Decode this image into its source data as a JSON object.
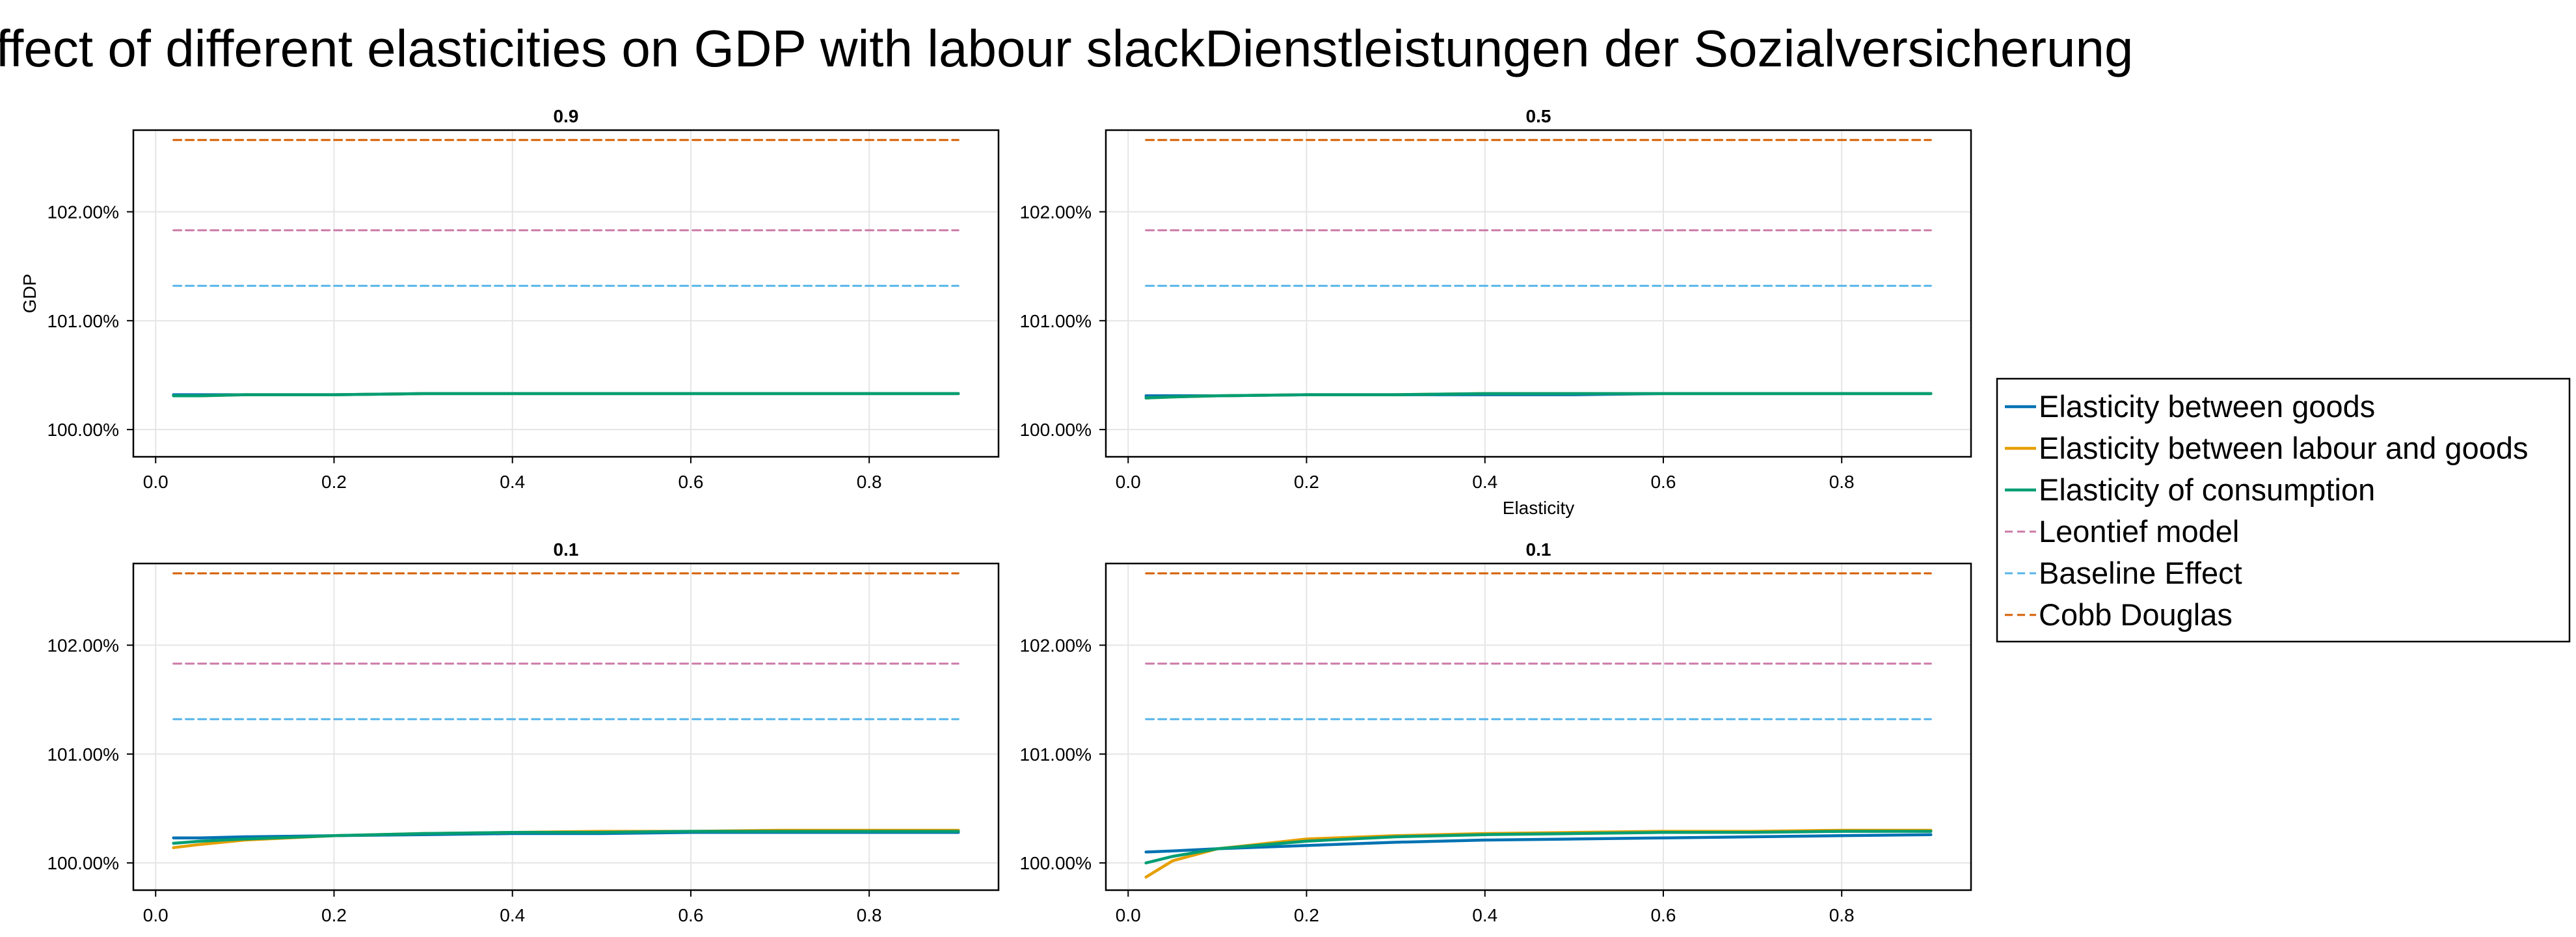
{
  "figure": {
    "title": "Effect of different elasticities on GDP with labour slackDienstleistungen der Sozialversicherung"
  },
  "legend": {
    "placement": "right",
    "entries": [
      {
        "label": "Elasticity between goods",
        "color": "#0072B2",
        "dash": "solid"
      },
      {
        "label": "Elasticity between labour and goods",
        "color": "#E69F00",
        "dash": "solid"
      },
      {
        "label": "Elasticity of consumption",
        "color": "#009E73",
        "dash": "solid"
      },
      {
        "label": "Leontief model",
        "color": "#CC79A7",
        "dash": "dashed"
      },
      {
        "label": "Baseline Effect",
        "color": "#56B4E9",
        "dash": "dashed"
      },
      {
        "label": "Cobb Douglas",
        "color": "#D55E00",
        "dash": "dashed"
      }
    ]
  },
  "chart_data": [
    {
      "type": "line",
      "title": "0.9",
      "xlabel": "",
      "ylabel": "GDP",
      "xlim": [
        -0.025,
        0.945
      ],
      "ylim": [
        99.75,
        102.75
      ],
      "xticks": [
        0.0,
        0.2,
        0.4,
        0.6,
        0.8
      ],
      "xtick_labels": [
        "0.0",
        "0.2",
        "0.4",
        "0.6",
        "0.8"
      ],
      "yticks": [
        100,
        101,
        102
      ],
      "ytick_labels": [
        "100.00%",
        "101.00%",
        "102.00%"
      ],
      "grid": true,
      "x": [
        0.02,
        0.05,
        0.1,
        0.2,
        0.3,
        0.4,
        0.5,
        0.6,
        0.7,
        0.8,
        0.9
      ],
      "series": [
        {
          "name": "Elasticity between goods",
          "values": [
            100.32,
            100.32,
            100.32,
            100.32,
            100.33,
            100.33,
            100.33,
            100.33,
            100.33,
            100.33,
            100.33
          ]
        },
        {
          "name": "Elasticity between labour and goods",
          "values": [
            100.31,
            100.31,
            100.32,
            100.32,
            100.33,
            100.33,
            100.33,
            100.33,
            100.33,
            100.33,
            100.33
          ]
        },
        {
          "name": "Elasticity of consumption",
          "values": [
            100.31,
            100.31,
            100.32,
            100.32,
            100.33,
            100.33,
            100.33,
            100.33,
            100.33,
            100.33,
            100.33
          ]
        },
        {
          "name": "Leontief model",
          "values": [
            101.83,
            101.83,
            101.83,
            101.83,
            101.83,
            101.83,
            101.83,
            101.83,
            101.83,
            101.83,
            101.83
          ]
        },
        {
          "name": "Baseline Effect",
          "values": [
            101.32,
            101.32,
            101.32,
            101.32,
            101.32,
            101.32,
            101.32,
            101.32,
            101.32,
            101.32,
            101.32
          ]
        },
        {
          "name": "Cobb Douglas",
          "values": [
            102.66,
            102.66,
            102.66,
            102.66,
            102.66,
            102.66,
            102.66,
            102.66,
            102.66,
            102.66,
            102.66
          ]
        }
      ]
    },
    {
      "type": "line",
      "title": "0.5",
      "xlabel": "Elasticity",
      "ylabel": "",
      "xlim": [
        -0.025,
        0.945
      ],
      "ylim": [
        99.75,
        102.75
      ],
      "xticks": [
        0.0,
        0.2,
        0.4,
        0.6,
        0.8
      ],
      "xtick_labels": [
        "0.0",
        "0.2",
        "0.4",
        "0.6",
        "0.8"
      ],
      "yticks": [
        100,
        101,
        102
      ],
      "ytick_labels": [
        "100.00%",
        "101.00%",
        "102.00%"
      ],
      "grid": true,
      "x": [
        0.02,
        0.05,
        0.1,
        0.2,
        0.3,
        0.4,
        0.5,
        0.6,
        0.7,
        0.8,
        0.9
      ],
      "series": [
        {
          "name": "Elasticity between goods",
          "values": [
            100.31,
            100.31,
            100.31,
            100.32,
            100.32,
            100.32,
            100.32,
            100.33,
            100.33,
            100.33,
            100.33
          ]
        },
        {
          "name": "Elasticity between labour and goods",
          "values": [
            100.29,
            100.3,
            100.31,
            100.32,
            100.32,
            100.33,
            100.33,
            100.33,
            100.33,
            100.33,
            100.33
          ]
        },
        {
          "name": "Elasticity of consumption",
          "values": [
            100.29,
            100.3,
            100.31,
            100.32,
            100.32,
            100.33,
            100.33,
            100.33,
            100.33,
            100.33,
            100.33
          ]
        },
        {
          "name": "Leontief model",
          "values": [
            101.83,
            101.83,
            101.83,
            101.83,
            101.83,
            101.83,
            101.83,
            101.83,
            101.83,
            101.83,
            101.83
          ]
        },
        {
          "name": "Baseline Effect",
          "values": [
            101.32,
            101.32,
            101.32,
            101.32,
            101.32,
            101.32,
            101.32,
            101.32,
            101.32,
            101.32,
            101.32
          ]
        },
        {
          "name": "Cobb Douglas",
          "values": [
            102.66,
            102.66,
            102.66,
            102.66,
            102.66,
            102.66,
            102.66,
            102.66,
            102.66,
            102.66,
            102.66
          ]
        }
      ]
    },
    {
      "type": "line",
      "title": "0.1",
      "xlabel": "",
      "ylabel": "",
      "xlim": [
        -0.025,
        0.945
      ],
      "ylim": [
        99.75,
        102.75
      ],
      "xticks": [
        0.0,
        0.2,
        0.4,
        0.6,
        0.8
      ],
      "xtick_labels": [
        "0.0",
        "0.2",
        "0.4",
        "0.6",
        "0.8"
      ],
      "yticks": [
        100,
        101,
        102
      ],
      "ytick_labels": [
        "100.00%",
        "101.00%",
        "102.00%"
      ],
      "grid": true,
      "x": [
        0.02,
        0.05,
        0.1,
        0.2,
        0.3,
        0.4,
        0.5,
        0.6,
        0.7,
        0.8,
        0.9
      ],
      "series": [
        {
          "name": "Elasticity between goods",
          "values": [
            100.23,
            100.23,
            100.24,
            100.25,
            100.26,
            100.27,
            100.27,
            100.28,
            100.28,
            100.28,
            100.28
          ]
        },
        {
          "name": "Elasticity between labour and goods",
          "values": [
            100.14,
            100.17,
            100.21,
            100.25,
            100.27,
            100.28,
            100.29,
            100.29,
            100.3,
            100.3,
            100.3
          ]
        },
        {
          "name": "Elasticity of consumption",
          "values": [
            100.18,
            100.2,
            100.22,
            100.25,
            100.27,
            100.28,
            100.28,
            100.29,
            100.29,
            100.29,
            100.29
          ]
        },
        {
          "name": "Leontief model",
          "values": [
            101.83,
            101.83,
            101.83,
            101.83,
            101.83,
            101.83,
            101.83,
            101.83,
            101.83,
            101.83,
            101.83
          ]
        },
        {
          "name": "Baseline Effect",
          "values": [
            101.32,
            101.32,
            101.32,
            101.32,
            101.32,
            101.32,
            101.32,
            101.32,
            101.32,
            101.32,
            101.32
          ]
        },
        {
          "name": "Cobb Douglas",
          "values": [
            102.66,
            102.66,
            102.66,
            102.66,
            102.66,
            102.66,
            102.66,
            102.66,
            102.66,
            102.66,
            102.66
          ]
        }
      ]
    },
    {
      "type": "line",
      "title": "0.1",
      "xlabel": "",
      "ylabel": "",
      "xlim": [
        -0.025,
        0.945
      ],
      "ylim": [
        99.75,
        102.75
      ],
      "xticks": [
        0.0,
        0.2,
        0.4,
        0.6,
        0.8
      ],
      "xtick_labels": [
        "0.0",
        "0.2",
        "0.4",
        "0.6",
        "0.8"
      ],
      "yticks": [
        100,
        101,
        102
      ],
      "ytick_labels": [
        "100.00%",
        "101.00%",
        "102.00%"
      ],
      "grid": true,
      "x": [
        0.02,
        0.05,
        0.1,
        0.2,
        0.3,
        0.4,
        0.5,
        0.6,
        0.7,
        0.8,
        0.9
      ],
      "series": [
        {
          "name": "Elasticity between goods",
          "values": [
            100.1,
            100.11,
            100.13,
            100.16,
            100.19,
            100.21,
            100.22,
            100.23,
            100.24,
            100.25,
            100.26
          ]
        },
        {
          "name": "Elasticity between labour and goods",
          "values": [
            99.87,
            100.02,
            100.13,
            100.22,
            100.25,
            100.27,
            100.28,
            100.29,
            100.29,
            100.3,
            100.3
          ]
        },
        {
          "name": "Elasticity of consumption",
          "values": [
            100.0,
            100.06,
            100.13,
            100.2,
            100.24,
            100.26,
            100.27,
            100.28,
            100.28,
            100.29,
            100.29
          ]
        },
        {
          "name": "Leontief model",
          "values": [
            101.83,
            101.83,
            101.83,
            101.83,
            101.83,
            101.83,
            101.83,
            101.83,
            101.83,
            101.83,
            101.83
          ]
        },
        {
          "name": "Baseline Effect",
          "values": [
            101.32,
            101.32,
            101.32,
            101.32,
            101.32,
            101.32,
            101.32,
            101.32,
            101.32,
            101.32,
            101.32
          ]
        },
        {
          "name": "Cobb Douglas",
          "values": [
            102.66,
            102.66,
            102.66,
            102.66,
            102.66,
            102.66,
            102.66,
            102.66,
            102.66,
            102.66,
            102.66
          ]
        }
      ]
    }
  ]
}
